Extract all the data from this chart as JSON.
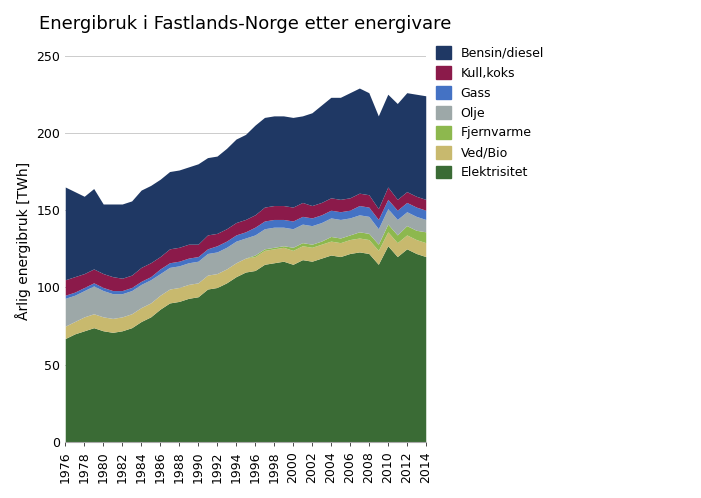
{
  "title": "Energibruk i Fastlands-Norge etter energivare",
  "ylabel": "Årlig energibruk [TWh]",
  "years": [
    1976,
    1977,
    1978,
    1979,
    1980,
    1981,
    1982,
    1983,
    1984,
    1985,
    1986,
    1987,
    1988,
    1989,
    1990,
    1991,
    1992,
    1993,
    1994,
    1995,
    1996,
    1997,
    1998,
    1999,
    2000,
    2001,
    2002,
    2003,
    2004,
    2005,
    2006,
    2007,
    2008,
    2009,
    2010,
    2011,
    2012,
    2013,
    2014
  ],
  "series": {
    "Elektrisitet": [
      67,
      70,
      72,
      74,
      72,
      71,
      72,
      74,
      78,
      81,
      86,
      90,
      91,
      93,
      94,
      99,
      100,
      103,
      107,
      110,
      111,
      115,
      116,
      117,
      115,
      118,
      117,
      119,
      121,
      120,
      122,
      123,
      122,
      115,
      127,
      120,
      125,
      122,
      120
    ],
    "Ved/Bio": [
      8,
      8,
      9,
      9,
      9,
      9,
      9,
      9,
      9,
      9,
      9,
      9,
      9,
      9,
      9,
      9,
      9,
      9,
      9,
      9,
      9,
      9,
      9,
      9,
      9,
      9,
      9,
      9,
      9,
      9,
      9,
      9,
      9,
      9,
      9,
      9,
      9,
      9,
      9
    ],
    "Fjernvarme": [
      0,
      0,
      0,
      0,
      0,
      0,
      0,
      0,
      0,
      0,
      0,
      0,
      0,
      0,
      0,
      0,
      0,
      0,
      0,
      0,
      1,
      1,
      1,
      1,
      2,
      2,
      2,
      2,
      3,
      3,
      3,
      4,
      4,
      4,
      5,
      5,
      6,
      6,
      7
    ],
    "Olje": [
      18,
      17,
      17,
      18,
      17,
      16,
      15,
      15,
      15,
      15,
      14,
      14,
      14,
      14,
      14,
      14,
      14,
      14,
      14,
      13,
      13,
      13,
      13,
      12,
      12,
      12,
      12,
      12,
      12,
      12,
      11,
      11,
      11,
      10,
      10,
      10,
      9,
      9,
      8
    ],
    "Gass": [
      2,
      2,
      2,
      2,
      2,
      2,
      2,
      2,
      2,
      2,
      3,
      3,
      3,
      3,
      3,
      3,
      4,
      4,
      4,
      4,
      5,
      5,
      5,
      5,
      5,
      5,
      5,
      5,
      5,
      5,
      5,
      6,
      6,
      6,
      6,
      6,
      6,
      6,
      6
    ],
    "Kull,koks": [
      10,
      10,
      9,
      9,
      9,
      9,
      8,
      8,
      9,
      9,
      8,
      9,
      9,
      9,
      8,
      9,
      8,
      8,
      8,
      8,
      8,
      9,
      9,
      9,
      9,
      9,
      8,
      8,
      8,
      8,
      8,
      8,
      8,
      7,
      8,
      7,
      7,
      7,
      7
    ],
    "Bensin/diesel": [
      60,
      55,
      50,
      52,
      45,
      47,
      48,
      48,
      50,
      50,
      50,
      50,
      50,
      50,
      52,
      50,
      50,
      52,
      54,
      55,
      58,
      58,
      58,
      58,
      58,
      56,
      60,
      63,
      65,
      66,
      68,
      68,
      66,
      60,
      60,
      62,
      64,
      66,
      67
    ]
  },
  "colors": {
    "Elektrisitet": "#3a6b35",
    "Ved/Bio": "#c8b96e",
    "Fjernvarme": "#8db84e",
    "Olje": "#9da8a8",
    "Gass": "#4472c4",
    "Kull,koks": "#8b1a4a",
    "Bensin/diesel": "#1f3864"
  },
  "ylim": [
    0,
    260
  ],
  "yticks": [
    0,
    50,
    100,
    150,
    200,
    250
  ],
  "stack_order": [
    "Elektrisitet",
    "Ved/Bio",
    "Fjernvarme",
    "Olje",
    "Gass",
    "Kull,koks",
    "Bensin/diesel"
  ],
  "legend_order": [
    "Bensin/diesel",
    "Kull,koks",
    "Gass",
    "Olje",
    "Fjernvarme",
    "Ved/Bio",
    "Elektrisitet"
  ],
  "background_color": "#ffffff",
  "figsize": [
    7.01,
    4.98
  ],
  "dpi": 100
}
